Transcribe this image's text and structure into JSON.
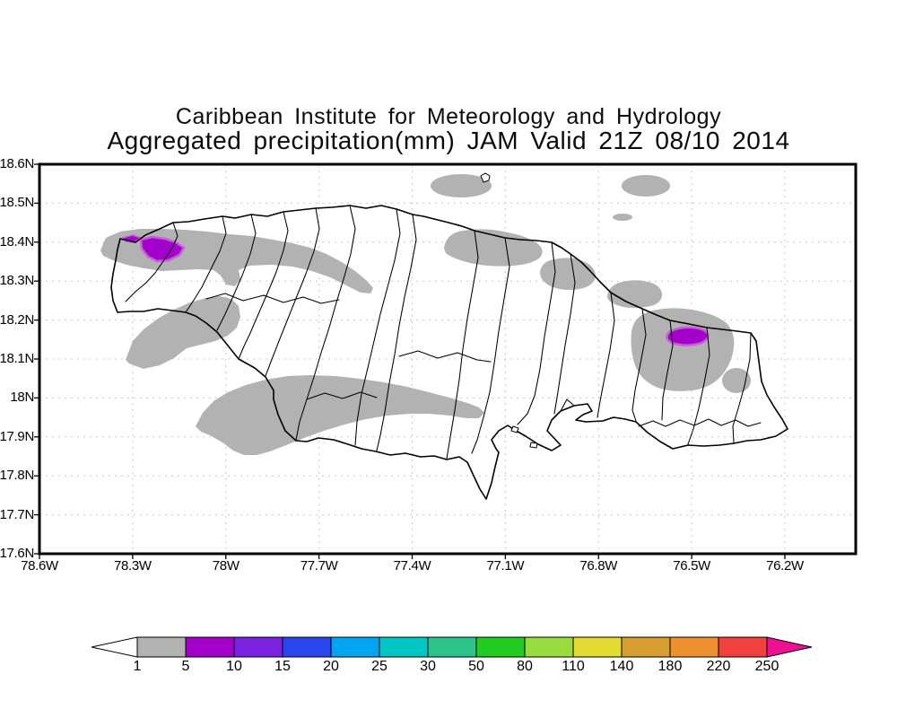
{
  "title": {
    "line1": "Caribbean Institute for Meteorology and Hydrology",
    "line2": "Aggregated precipitation(mm) JAM Valid 21Z 08/10 2014"
  },
  "map_plot": {
    "region": "Jamaica",
    "boundaries": "watershed boundaries",
    "y_axis_ticks": [
      "18.6N",
      "18.5N",
      "18.4N",
      "18.3N",
      "18.2N",
      "18.1N",
      "18N",
      "17.9N",
      "17.8N",
      "17.7N",
      "17.6N"
    ],
    "x_axis_ticks": [
      "78.6W",
      "78.3W",
      "78W",
      "77.7W",
      "77.4W",
      "77.1W",
      "76.8W",
      "76.5W",
      "76.2W"
    ],
    "grid_color": "#c9c9c9",
    "outline_color": "#000000"
  },
  "precipitation_shading": {
    "light_color": "#b2b2b2",
    "light_range_mm": "1-5",
    "heavy_color": "#a400cc",
    "heavy_fringe_color": "#c55fd8",
    "heavy_range_mm": "5-10",
    "areas": [
      "offshore north-central ellipse",
      "offshore northeast ellipse",
      "small offshore sliver",
      "north coast St Ann patch",
      "Annotto Bay coastal patch",
      "Buff Bay coastal lobe",
      "Blue Mountains mass with heavy purple core",
      "small southeast patch",
      "western band with heavy purple core",
      "Westmoreland-St Elizabeth band",
      "south-central band"
    ]
  },
  "colorbar": {
    "tick_labels": [
      "1",
      "5",
      "10",
      "15",
      "20",
      "25",
      "30",
      "50",
      "80",
      "110",
      "140",
      "180",
      "220",
      "250"
    ],
    "segment_colors": [
      "#b2b2b2",
      "#a400cc",
      "#7a22e0",
      "#2a46ee",
      "#00a4f0",
      "#00c6c6",
      "#2cc488",
      "#22cc22",
      "#98dc40",
      "#e4da34",
      "#d89e32",
      "#ee9030",
      "#f04040"
    ],
    "under_arrow_color": "#ffffff",
    "over_arrow_color": "#ee1090"
  }
}
